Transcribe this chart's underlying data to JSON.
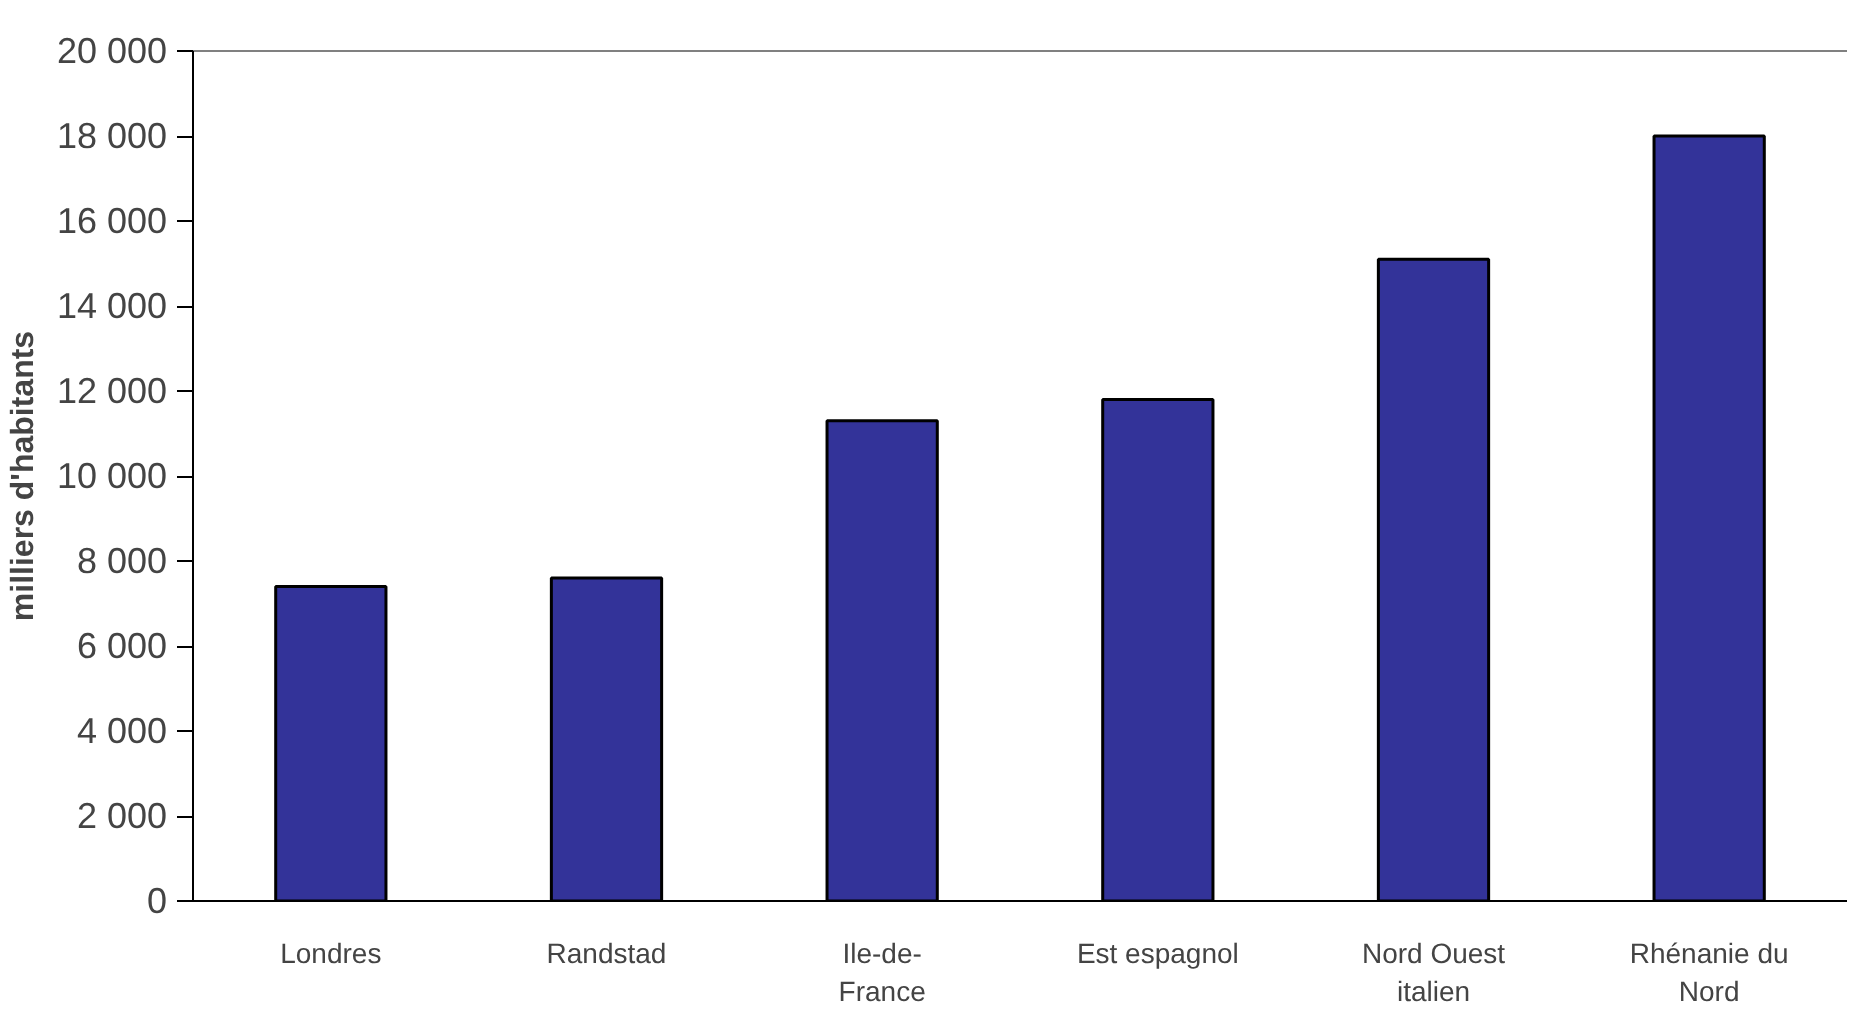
{
  "chart_data": {
    "type": "bar",
    "ylabel": "milliers d'habitants",
    "categories": [
      "Londres",
      "Randstad",
      "Ile-de-France",
      "Est espagnol",
      "Nord Ouest italien",
      "Rhénanie du Nord"
    ],
    "values": [
      7400,
      7600,
      11300,
      11800,
      15100,
      18000
    ],
    "color": "#333399",
    "ylim": [
      0,
      20000
    ],
    "yticks": [
      {
        "value": 0,
        "label": "0"
      },
      {
        "value": 2000,
        "label": "2 000"
      },
      {
        "value": 4000,
        "label": "4 000"
      },
      {
        "value": 6000,
        "label": "6 000"
      },
      {
        "value": 8000,
        "label": "8 000"
      },
      {
        "value": 10000,
        "label": "10 000"
      },
      {
        "value": 12000,
        "label": "12 000"
      },
      {
        "value": 14000,
        "label": "14 000"
      },
      {
        "value": 16000,
        "label": "16 000"
      },
      {
        "value": 18000,
        "label": "18 000"
      },
      {
        "value": 20000,
        "label": "20 000"
      }
    ],
    "grid": false
  }
}
